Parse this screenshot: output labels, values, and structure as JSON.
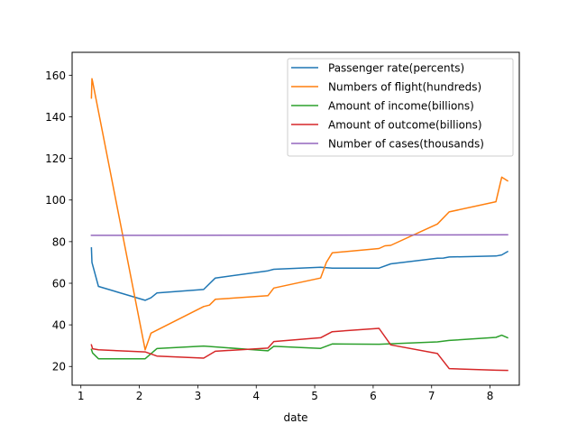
{
  "chart_data": {
    "type": "line",
    "title": "",
    "xlabel": "date",
    "ylabel": "",
    "xlim": [
      0.85,
      8.5
    ],
    "ylim": [
      11,
      171
    ],
    "xticks": [
      1,
      2,
      3,
      4,
      5,
      6,
      7,
      8
    ],
    "yticks": [
      20,
      40,
      60,
      80,
      100,
      120,
      140,
      160
    ],
    "grid": false,
    "legend_position": "upper right",
    "series": [
      {
        "name": "Passenger rate(percents)",
        "color": "#1f77b4",
        "points": [
          [
            1.18,
            77.0
          ],
          [
            1.19,
            70.0
          ],
          [
            1.3,
            58.5
          ],
          [
            2.1,
            51.8
          ],
          [
            2.2,
            53.0
          ],
          [
            2.3,
            55.3
          ],
          [
            3.1,
            57.0
          ],
          [
            3.3,
            62.5
          ],
          [
            4.2,
            66.0
          ],
          [
            4.3,
            66.7
          ],
          [
            5.1,
            67.7
          ],
          [
            5.3,
            67.3
          ],
          [
            6.1,
            67.3
          ],
          [
            6.3,
            69.3
          ],
          [
            7.1,
            72.0
          ],
          [
            7.2,
            72.1
          ],
          [
            7.3,
            72.6
          ],
          [
            8.1,
            73.1
          ],
          [
            8.2,
            73.6
          ],
          [
            8.3,
            75.2
          ]
        ]
      },
      {
        "name": "Numbers of flight(hundreds)",
        "color": "#ff7f0e",
        "points": [
          [
            1.18,
            149.0
          ],
          [
            1.19,
            158.3
          ],
          [
            1.2,
            157.0
          ],
          [
            2.1,
            28.0
          ],
          [
            2.2,
            36.0
          ],
          [
            3.1,
            48.8
          ],
          [
            3.2,
            49.5
          ],
          [
            3.3,
            52.3
          ],
          [
            4.2,
            54.0
          ],
          [
            4.3,
            57.7
          ],
          [
            5.1,
            62.5
          ],
          [
            5.2,
            70.0
          ],
          [
            5.3,
            74.6
          ],
          [
            6.1,
            76.7
          ],
          [
            6.2,
            78.0
          ],
          [
            6.3,
            78.2
          ],
          [
            7.1,
            88.5
          ],
          [
            7.3,
            94.3
          ],
          [
            8.1,
            99.2
          ],
          [
            8.2,
            111.0
          ],
          [
            8.3,
            109.2
          ]
        ]
      },
      {
        "name": "Amount of income(billions)",
        "color": "#2ca02c",
        "points": [
          [
            1.18,
            28.2
          ],
          [
            1.2,
            26.5
          ],
          [
            1.3,
            23.7
          ],
          [
            2.1,
            23.7
          ],
          [
            2.3,
            28.6
          ],
          [
            3.1,
            29.8
          ],
          [
            4.2,
            27.5
          ],
          [
            4.3,
            29.7
          ],
          [
            5.1,
            28.7
          ],
          [
            5.3,
            30.8
          ],
          [
            6.1,
            30.7
          ],
          [
            7.1,
            31.8
          ],
          [
            7.3,
            32.5
          ],
          [
            8.1,
            34.0
          ],
          [
            8.2,
            35.0
          ],
          [
            8.3,
            33.8
          ]
        ]
      },
      {
        "name": "Amount of outcome(billions)",
        "color": "#d62728",
        "points": [
          [
            1.18,
            30.4
          ],
          [
            1.2,
            28.5
          ],
          [
            1.3,
            28.0
          ],
          [
            2.1,
            27.0
          ],
          [
            2.3,
            25.0
          ],
          [
            3.1,
            24.0
          ],
          [
            3.3,
            27.3
          ],
          [
            4.2,
            28.8
          ],
          [
            4.3,
            32.0
          ],
          [
            5.1,
            33.8
          ],
          [
            5.3,
            36.7
          ],
          [
            6.1,
            38.3
          ],
          [
            6.3,
            30.4
          ],
          [
            7.1,
            26.2
          ],
          [
            7.3,
            19.0
          ],
          [
            8.1,
            18.2
          ],
          [
            8.3,
            18.1
          ]
        ]
      },
      {
        "name": "Number of cases(thousands)",
        "color": "#9467bd",
        "points": [
          [
            1.18,
            83.0
          ],
          [
            2.2,
            83.0
          ],
          [
            4.2,
            83.1
          ],
          [
            6.2,
            83.2
          ],
          [
            8.3,
            83.3
          ]
        ]
      }
    ]
  }
}
